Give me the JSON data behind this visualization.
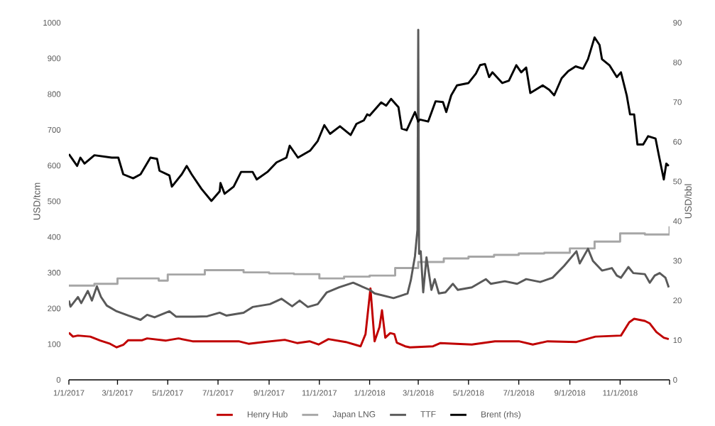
{
  "chart_data": {
    "type": "line",
    "ylabel": "USD/tcm",
    "y2label": "USD/bbl",
    "legend": "bottom",
    "xlim": [
      "2017-01-01",
      "2018-12-31"
    ],
    "xticks": [
      {
        "value": "2017-01-01",
        "label": "1/1/2017"
      },
      {
        "value": "2017-03-01",
        "label": "3/1/2017"
      },
      {
        "value": "2017-05-01",
        "label": "5/1/2017"
      },
      {
        "value": "2017-07-01",
        "label": "7/1/2017"
      },
      {
        "value": "2017-09-01",
        "label": "9/1/2017"
      },
      {
        "value": "2017-11-01",
        "label": "11/1/2017"
      },
      {
        "value": "2018-01-01",
        "label": "1/1/2018"
      },
      {
        "value": "2018-03-01",
        "label": "3/1/2018"
      },
      {
        "value": "2018-05-01",
        "label": "5/1/2018"
      },
      {
        "value": "2018-07-01",
        "label": "7/1/2018"
      },
      {
        "value": "2018-09-01",
        "label": "9/1/2018"
      },
      {
        "value": "2018-11-01",
        "label": "11/1/2018"
      },
      {
        "value": "2018-12-31",
        "label": null
      }
    ],
    "ylim": [
      0,
      1000
    ],
    "yticks": [
      0,
      100,
      200,
      300,
      400,
      500,
      600,
      700,
      800,
      900,
      1000
    ],
    "y2lim": [
      0,
      90
    ],
    "y2ticks": [
      0,
      10,
      20,
      30,
      40,
      50,
      60,
      70,
      80,
      90
    ],
    "series": [
      {
        "name": "Henry Hub",
        "color": "#c00000",
        "x": [
          "2017-01-01",
          "2017-01-06",
          "2017-01-12",
          "2017-01-27",
          "2017-02-08",
          "2017-02-20",
          "2017-02-28",
          "2017-03-08",
          "2017-03-14",
          "2017-03-31",
          "2017-04-06",
          "2017-04-29",
          "2017-05-14",
          "2017-05-31",
          "2017-06-27",
          "2017-07-26",
          "2017-08-07",
          "2017-08-25",
          "2017-09-20",
          "2017-10-05",
          "2017-10-20",
          "2017-10-31",
          "2017-11-12",
          "2017-12-03",
          "2017-12-21",
          "2017-12-27",
          "2018-01-02",
          "2018-01-07",
          "2018-01-13",
          "2018-01-16",
          "2018-01-20",
          "2018-01-26",
          "2018-01-31",
          "2018-02-03",
          "2018-02-13",
          "2018-02-19",
          "2018-03-19",
          "2018-03-28",
          "2018-05-05",
          "2018-06-02",
          "2018-07-01",
          "2018-07-18",
          "2018-08-05",
          "2018-09-09",
          "2018-10-02",
          "2018-11-02",
          "2018-11-12",
          "2018-11-18",
          "2018-12-01",
          "2018-12-07",
          "2018-12-15",
          "2018-12-24",
          "2018-12-30"
        ],
        "values": [
          132,
          121,
          124,
          121,
          110,
          101,
          91,
          98,
          111,
          111,
          116,
          110,
          116,
          108,
          108,
          108,
          101,
          106,
          112,
          103,
          108,
          99,
          114,
          106,
          94,
          128,
          256,
          108,
          148,
          195,
          118,
          131,
          128,
          104,
          94,
          91,
          94,
          103,
          99,
          108,
          108,
          99,
          108,
          106,
          121,
          124,
          161,
          171,
          165,
          158,
          134,
          118,
          114
        ]
      },
      {
        "name": "Japan LNG",
        "type": "step",
        "color": "#a6a6a6",
        "x": [
          "2017-01-01",
          "2017-02-01",
          "2017-03-01",
          "2017-04-20",
          "2017-05-01",
          "2017-06-15",
          "2017-08-01",
          "2017-09-01",
          "2017-10-01",
          "2017-11-01",
          "2017-12-01",
          "2018-01-01",
          "2018-02-01",
          "2018-03-01",
          "2018-04-01",
          "2018-05-01",
          "2018-06-01",
          "2018-07-01",
          "2018-08-01",
          "2018-09-01",
          "2018-10-01",
          "2018-11-01",
          "2018-12-01",
          "2018-12-31"
        ],
        "values": [
          264,
          269,
          284,
          278,
          295,
          307,
          301,
          298,
          296,
          284,
          289,
          292,
          313,
          330,
          340,
          345,
          350,
          354,
          356,
          368,
          387,
          410,
          407,
          430
        ]
      },
      {
        "name": "TTF",
        "color": "#595959",
        "x": [
          "2017-01-01",
          "2017-01-03",
          "2017-01-12",
          "2017-01-16",
          "2017-01-24",
          "2017-01-29",
          "2017-02-04",
          "2017-02-09",
          "2017-02-16",
          "2017-02-28",
          "2017-03-14",
          "2017-03-29",
          "2017-04-06",
          "2017-04-15",
          "2017-05-03",
          "2017-05-11",
          "2017-06-03",
          "2017-06-18",
          "2017-07-03",
          "2017-07-11",
          "2017-08-01",
          "2017-08-12",
          "2017-09-02",
          "2017-09-16",
          "2017-09-29",
          "2017-10-08",
          "2017-10-18",
          "2017-10-30",
          "2017-11-10",
          "2017-11-25",
          "2017-12-12",
          "2018-01-01",
          "2018-01-07",
          "2018-01-30",
          "2018-02-07",
          "2018-02-16",
          "2018-02-20",
          "2018-02-25",
          "2018-02-28",
          "2018-03-01",
          "2018-03-02",
          "2018-03-04",
          "2018-03-07",
          "2018-03-11",
          "2018-03-17",
          "2018-03-21",
          "2018-03-26",
          "2018-04-03",
          "2018-04-12",
          "2018-04-18",
          "2018-05-05",
          "2018-05-22",
          "2018-05-28",
          "2018-06-14",
          "2018-06-29",
          "2018-07-10",
          "2018-07-27",
          "2018-08-11",
          "2018-08-25",
          "2018-09-09",
          "2018-09-13",
          "2018-09-23",
          "2018-09-29",
          "2018-10-10",
          "2018-10-22",
          "2018-10-28",
          "2018-11-02",
          "2018-11-11",
          "2018-11-17",
          "2018-12-01",
          "2018-12-07",
          "2018-12-13",
          "2018-12-19",
          "2018-12-26",
          "2018-12-30"
        ],
        "values": [
          222,
          205,
          232,
          215,
          249,
          222,
          262,
          232,
          208,
          192,
          180,
          168,
          182,
          175,
          192,
          177,
          177,
          178,
          188,
          180,
          188,
          204,
          212,
          227,
          206,
          222,
          204,
          212,
          245,
          259,
          272,
          252,
          242,
          229,
          235,
          242,
          279,
          346,
          420,
          980,
          353,
          360,
          245,
          343,
          252,
          282,
          242,
          245,
          269,
          252,
          259,
          282,
          269,
          276,
          269,
          282,
          274,
          286,
          319,
          360,
          326,
          367,
          333,
          306,
          313,
          292,
          286,
          316,
          299,
          296,
          272,
          292,
          299,
          286,
          259
        ]
      },
      {
        "name": "Brent (rhs)",
        "color": "#000000",
        "axis": "y2",
        "x": [
          "2017-01-01",
          "2017-01-05",
          "2017-01-11",
          "2017-01-15",
          "2017-01-20",
          "2017-02-01",
          "2017-02-22",
          "2017-03-02",
          "2017-03-08",
          "2017-03-20",
          "2017-03-29",
          "2017-04-10",
          "2017-04-18",
          "2017-04-21",
          "2017-05-03",
          "2017-05-06",
          "2017-05-18",
          "2017-05-24",
          "2017-05-30",
          "2017-06-11",
          "2017-06-23",
          "2017-07-03",
          "2017-07-04",
          "2017-07-09",
          "2017-07-20",
          "2017-07-29",
          "2017-08-12",
          "2017-08-17",
          "2017-08-30",
          "2017-09-10",
          "2017-09-22",
          "2017-09-26",
          "2017-10-06",
          "2017-10-21",
          "2017-10-30",
          "2017-11-07",
          "2017-11-14",
          "2017-11-26",
          "2017-12-09",
          "2017-12-16",
          "2017-12-25",
          "2017-12-29",
          "2018-01-01",
          "2018-01-15",
          "2018-01-21",
          "2018-01-27",
          "2018-02-05",
          "2018-02-09",
          "2018-02-15",
          "2018-02-25",
          "2018-03-01",
          "2018-03-03",
          "2018-03-13",
          "2018-03-22",
          "2018-03-31",
          "2018-04-04",
          "2018-04-10",
          "2018-04-17",
          "2018-05-01",
          "2018-05-10",
          "2018-05-15",
          "2018-05-21",
          "2018-05-26",
          "2018-05-30",
          "2018-06-11",
          "2018-06-19",
          "2018-06-28",
          "2018-07-04",
          "2018-07-10",
          "2018-07-15",
          "2018-07-30",
          "2018-08-07",
          "2018-08-13",
          "2018-08-22",
          "2018-08-30",
          "2018-09-08",
          "2018-09-17",
          "2018-09-23",
          "2018-10-01",
          "2018-10-07",
          "2018-10-10",
          "2018-10-19",
          "2018-10-28",
          "2018-11-02",
          "2018-11-09",
          "2018-11-13",
          "2018-11-18",
          "2018-11-22",
          "2018-11-29",
          "2018-12-05",
          "2018-12-14",
          "2018-12-18",
          "2018-12-24",
          "2018-12-27",
          "2018-12-30"
        ],
        "values": [
          56.9,
          55.7,
          53.9,
          56.0,
          54.5,
          56.6,
          56.0,
          56.0,
          51.8,
          50.8,
          51.8,
          56.0,
          55.7,
          52.7,
          51.5,
          48.7,
          51.8,
          53.9,
          51.8,
          48.1,
          45.1,
          47.5,
          49.6,
          46.9,
          48.7,
          52.4,
          52.4,
          50.5,
          52.4,
          54.8,
          56.0,
          59.0,
          56.0,
          57.8,
          60.2,
          64.2,
          62.0,
          63.9,
          61.7,
          64.5,
          65.4,
          66.9,
          66.6,
          69.9,
          69.1,
          70.8,
          68.7,
          63.3,
          62.9,
          67.5,
          65.1,
          65.6,
          65.1,
          70.2,
          70.0,
          67.5,
          71.7,
          74.2,
          74.8,
          77.2,
          79.3,
          79.6,
          76.3,
          77.5,
          74.8,
          75.4,
          79.3,
          77.5,
          78.7,
          72.3,
          74.2,
          73.1,
          71.7,
          76.0,
          77.8,
          79.0,
          78.4,
          80.8,
          86.3,
          84.4,
          80.8,
          79.3,
          76.3,
          77.5,
          71.7,
          66.9,
          66.9,
          59.3,
          59.3,
          61.4,
          60.8,
          56.6,
          50.5,
          54.5,
          53.9
        ]
      }
    ]
  }
}
